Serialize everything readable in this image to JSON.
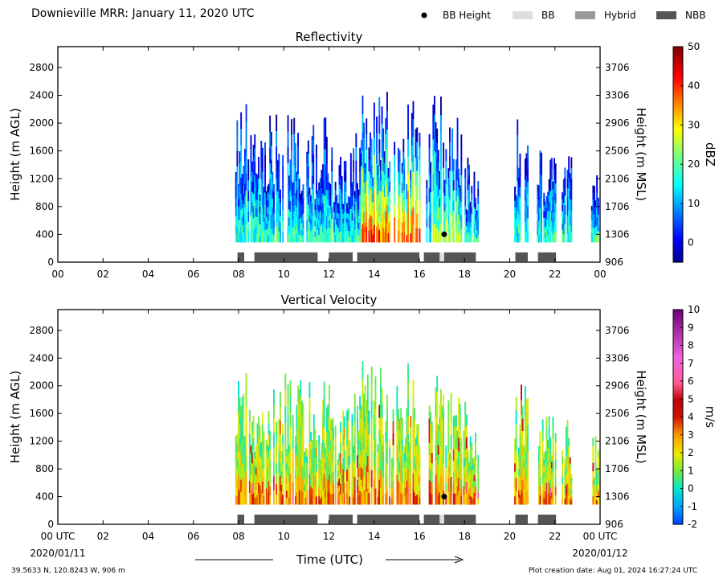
{
  "header": {
    "title": "Downieville MRR:  January 11, 2020 UTC"
  },
  "legend": {
    "items": [
      {
        "label": "BB Height",
        "marker": "dot",
        "color": "#000000"
      },
      {
        "label": "BB",
        "marker": "box",
        "color": "#dddddd"
      },
      {
        "label": "Hybrid",
        "marker": "box",
        "color": "#999999"
      },
      {
        "label": "NBB",
        "marker": "box",
        "color": "#555555"
      }
    ]
  },
  "footer": {
    "location": "39.5633 N, 120.8243 W, 906 m",
    "created": "Plot creation date: Aug 01, 2024 16:27:24 UTC"
  },
  "chart_data": [
    {
      "type": "heatmap",
      "title": "Reflectivity",
      "ylabel": "Height (m AGL)",
      "ylabel_right": "Height (m MSL)",
      "ylim": [
        0,
        3100
      ],
      "yticks": [
        0,
        400,
        800,
        1200,
        1600,
        2000,
        2400,
        2800
      ],
      "yticks_right": [
        "906",
        "1306",
        "1706",
        "2106",
        "2506",
        "2906",
        "3306",
        "3706"
      ],
      "xlim": [
        0,
        24
      ],
      "xticks": [
        "00",
        "02",
        "04",
        "06",
        "08",
        "10",
        "12",
        "14",
        "16",
        "18",
        "20",
        "22",
        "00"
      ],
      "colorbar": {
        "label": "dBZ",
        "range": [
          -5,
          50
        ],
        "ticks": [
          "0",
          "10",
          "20",
          "30",
          "40",
          "50"
        ],
        "tick_values": [
          0,
          10,
          20,
          30,
          40,
          50
        ]
      },
      "colormap": "jet",
      "precip_columns": [
        {
          "start": 7.85,
          "end": 8.4,
          "top": 2300
        },
        {
          "start": 8.4,
          "end": 9.3,
          "top": 1900
        },
        {
          "start": 9.3,
          "end": 10.2,
          "top": 2200
        },
        {
          "start": 10.2,
          "end": 11.3,
          "top": 2100
        },
        {
          "start": 11.3,
          "end": 11.7,
          "top": 1800
        },
        {
          "start": 11.7,
          "end": 12.2,
          "top": 2200
        },
        {
          "start": 12.2,
          "end": 13.0,
          "top": 1700
        },
        {
          "start": 13.0,
          "end": 13.4,
          "top": 2100
        },
        {
          "start": 13.4,
          "end": 14.2,
          "top": 2400
        },
        {
          "start": 14.2,
          "end": 14.7,
          "top": 2600
        },
        {
          "start": 14.7,
          "end": 15.3,
          "top": 2000
        },
        {
          "start": 15.3,
          "end": 16.0,
          "top": 2400
        },
        {
          "start": 16.3,
          "end": 17.2,
          "top": 2400
        },
        {
          "start": 17.2,
          "end": 18.0,
          "top": 2200
        },
        {
          "start": 18.0,
          "end": 18.6,
          "top": 1600
        },
        {
          "start": 20.2,
          "end": 20.8,
          "top": 2100
        },
        {
          "start": 21.2,
          "end": 22.0,
          "top": 1700
        },
        {
          "start": 22.3,
          "end": 22.7,
          "top": 1600
        },
        {
          "start": 23.6,
          "end": 23.9,
          "top": 1300
        }
      ],
      "core_intensity": [
        {
          "start": 13.4,
          "end": 16.0,
          "max": 38
        },
        {
          "start": 16.5,
          "end": 17.8,
          "max": 25
        }
      ],
      "bb_height": [
        {
          "time": 17.1,
          "height": 400
        }
      ],
      "bb_type_bars": [
        {
          "start": 7.95,
          "end": 8.25,
          "type": "NBB"
        },
        {
          "start": 8.7,
          "end": 11.5,
          "type": "NBB"
        },
        {
          "start": 12.0,
          "end": 13.05,
          "type": "NBB"
        },
        {
          "start": 13.25,
          "end": 16.0,
          "type": "NBB"
        },
        {
          "start": 16.2,
          "end": 16.9,
          "type": "NBB"
        },
        {
          "start": 16.9,
          "end": 17.1,
          "type": "BB"
        },
        {
          "start": 17.1,
          "end": 18.5,
          "type": "NBB"
        },
        {
          "start": 20.25,
          "end": 20.8,
          "type": "NBB"
        },
        {
          "start": 21.25,
          "end": 22.05,
          "type": "NBB"
        }
      ]
    },
    {
      "type": "heatmap",
      "title": "Vertical Velocity",
      "ylabel": "Height (m AGL)",
      "ylabel_right": "Height (m MSL)",
      "xlabel": "Time (UTC)",
      "ylim": [
        0,
        3100
      ],
      "yticks": [
        0,
        400,
        800,
        1200,
        1600,
        2000,
        2400,
        2800
      ],
      "yticks_right": [
        "906",
        "1306",
        "1706",
        "2106",
        "2506",
        "2906",
        "3306",
        "3706"
      ],
      "xlim": [
        0,
        24
      ],
      "xticks": [
        "00 UTC",
        "02",
        "04",
        "06",
        "08",
        "10",
        "12",
        "14",
        "16",
        "18",
        "20",
        "22",
        "00 UTC"
      ],
      "xdates": [
        "2020/01/11",
        "2020/01/12"
      ],
      "colorbar": {
        "label": "m/s",
        "range": [
          -2,
          10
        ],
        "ticks": [
          "-2",
          "-1",
          "0",
          "1",
          "2",
          "3",
          "4",
          "5",
          "6",
          "7",
          "8",
          "9",
          "10"
        ],
        "tick_values": [
          -2,
          -1,
          0,
          1,
          2,
          3,
          4,
          5,
          6,
          7,
          8,
          9,
          10
        ]
      },
      "colormap": "velocity",
      "typical_value": 2,
      "precip_columns": [
        {
          "start": 7.85,
          "end": 8.4,
          "top": 2300
        },
        {
          "start": 8.4,
          "end": 9.3,
          "top": 1900
        },
        {
          "start": 9.3,
          "end": 10.2,
          "top": 2200
        },
        {
          "start": 10.2,
          "end": 11.3,
          "top": 2100
        },
        {
          "start": 11.3,
          "end": 11.7,
          "top": 1800
        },
        {
          "start": 11.7,
          "end": 12.2,
          "top": 2200
        },
        {
          "start": 12.2,
          "end": 13.0,
          "top": 1700
        },
        {
          "start": 13.0,
          "end": 13.4,
          "top": 2100
        },
        {
          "start": 13.4,
          "end": 14.2,
          "top": 2400
        },
        {
          "start": 14.2,
          "end": 14.7,
          "top": 2600
        },
        {
          "start": 14.7,
          "end": 15.3,
          "top": 2000
        },
        {
          "start": 15.3,
          "end": 16.0,
          "top": 2400
        },
        {
          "start": 16.3,
          "end": 17.2,
          "top": 2400
        },
        {
          "start": 17.2,
          "end": 18.0,
          "top": 2200
        },
        {
          "start": 18.0,
          "end": 18.6,
          "top": 1600
        },
        {
          "start": 20.2,
          "end": 20.8,
          "top": 2100
        },
        {
          "start": 21.2,
          "end": 22.0,
          "top": 1700
        },
        {
          "start": 22.3,
          "end": 22.7,
          "top": 1600
        },
        {
          "start": 23.6,
          "end": 23.9,
          "top": 1300
        }
      ],
      "bb_height": [
        {
          "time": 17.1,
          "height": 400
        }
      ],
      "bb_type_bars": [
        {
          "start": 7.95,
          "end": 8.25,
          "type": "NBB"
        },
        {
          "start": 8.7,
          "end": 11.5,
          "type": "NBB"
        },
        {
          "start": 12.0,
          "end": 13.05,
          "type": "NBB"
        },
        {
          "start": 13.25,
          "end": 16.0,
          "type": "NBB"
        },
        {
          "start": 16.2,
          "end": 16.9,
          "type": "NBB"
        },
        {
          "start": 16.9,
          "end": 17.1,
          "type": "BB"
        },
        {
          "start": 17.1,
          "end": 18.5,
          "type": "NBB"
        },
        {
          "start": 20.25,
          "end": 20.8,
          "type": "NBB"
        },
        {
          "start": 21.25,
          "end": 22.05,
          "type": "NBB"
        }
      ]
    }
  ]
}
